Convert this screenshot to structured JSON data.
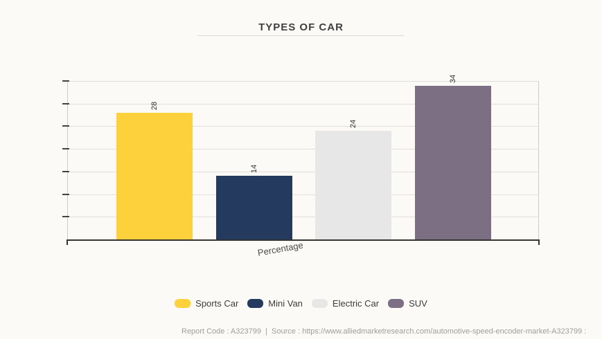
{
  "title": "TYPES OF CAR",
  "chart_data": {
    "type": "bar",
    "title": "TYPES OF CAR",
    "categories": [
      "Sports Car",
      "Mini Van",
      "Electric Car",
      "SUV"
    ],
    "values": [
      28,
      14,
      24,
      34
    ],
    "bar_colors": [
      "#fdd13c",
      "#243a5e",
      "#e7e7e7",
      "#7c6e83"
    ],
    "xlabel": "Percentage",
    "ylabel": "",
    "ylim": [
      0,
      35
    ],
    "ytick_interval": 5,
    "ytick_labels_shown": false,
    "grid": true,
    "legend_position": "bottom",
    "bar_value_labels_rotated": true
  },
  "legend": {
    "items": [
      {
        "label": "Sports Car",
        "color": "#fdd13c"
      },
      {
        "label": "Mini Van",
        "color": "#243a5e"
      },
      {
        "label": "Electric Car",
        "color": "#e7e7e7"
      },
      {
        "label": "SUV",
        "color": "#7c6e83"
      }
    ]
  },
  "footer": {
    "text": "Report Code : A323799  |  Source : https://www.alliedmarketresearch.com/automotive-speed-encoder-market-A323799 :"
  },
  "colors": {
    "background": "#fcfaf6",
    "gridline": "#e0dedb",
    "axis_dark": "#363430",
    "axis_light": "#cccccc",
    "title_text": "#3f3f3f",
    "label_text": "#333333",
    "footer_text": "#9e9e9e"
  }
}
